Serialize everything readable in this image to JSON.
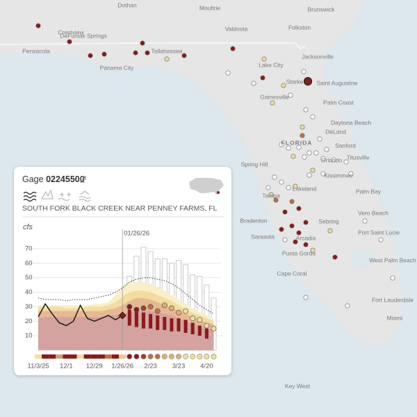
{
  "map": {
    "labels": [
      "Dothan",
      "Moultrie",
      "Valdosta",
      "Folkston",
      "Brunswick",
      "Crestview",
      "DeFuniak Springs",
      "Pensacola",
      "Tallahassee",
      "Jacksonville",
      "Panama City",
      "Lake City",
      "Starke",
      "Saint Augustine",
      "Gainesville",
      "Palm Coast",
      "Daytona Beach",
      "DeLand",
      "FLORIDA",
      "Sanford",
      "Spring Hill",
      "Orlando",
      "Titusville",
      "Kissimmee",
      "Lakeland",
      "Tampa",
      "Palm Bay",
      "Bradenton",
      "Sebring",
      "Vero Beach",
      "Port Saint Lucie",
      "Sarasota",
      "Arcadia",
      "West Palm Beach",
      "Punta Gorda",
      "Cape Coral",
      "Fort Lauderdale",
      "Miami",
      "Key West"
    ]
  },
  "card": {
    "title": "Gage",
    "gage_id": "02245500",
    "site_name": "SOUTH FORK BLACK CREEK NEAR PENNEY FARMS, FL"
  },
  "chart_data": {
    "type": "line",
    "y_label": "cfs",
    "annotation": "01/26/26",
    "categories": [
      "11/3/25",
      null,
      null,
      null,
      "12/1",
      null,
      null,
      null,
      "12/29",
      null,
      null,
      null,
      "1/26/26",
      null,
      null,
      null,
      "2/23",
      null,
      null,
      null,
      "3/23",
      null,
      null,
      null,
      "4/20",
      null
    ],
    "ylim": [
      0,
      80
    ],
    "yticks": [
      10,
      20,
      30,
      40,
      50,
      60,
      70
    ],
    "observed": {
      "color": "#1a1a1a",
      "values": [
        23,
        32,
        25,
        19,
        17,
        20,
        31,
        22,
        20,
        22,
        24,
        21,
        24,
        null,
        null,
        null,
        null,
        null,
        null,
        null,
        null,
        null,
        null,
        null,
        null,
        null
      ]
    },
    "reference": {
      "color": "#333333",
      "values": [
        36,
        35,
        35,
        35,
        34,
        35,
        35,
        35,
        36,
        37,
        38,
        40,
        43,
        47,
        49,
        50,
        50,
        49,
        48,
        46,
        43,
        39,
        35,
        31,
        28,
        25
      ]
    },
    "bands": [
      {
        "color": "#f8efc8",
        "values": [
          31,
          31,
          31,
          31,
          31,
          31,
          31,
          31,
          32,
          32,
          33,
          38,
          44,
          47,
          47,
          47,
          46,
          44,
          41,
          38,
          35,
          32,
          29,
          26,
          24,
          22
        ]
      },
      {
        "color": "#f2dc9e",
        "values": [
          30,
          30,
          30,
          30,
          29,
          29,
          29,
          30,
          30,
          30,
          31,
          33,
          37,
          40,
          41,
          41,
          40,
          38,
          36,
          34,
          31,
          28,
          26,
          24,
          22,
          20
        ]
      },
      {
        "color": "#e6b896",
        "values": [
          27,
          27,
          27,
          27,
          27,
          27,
          27,
          27,
          27,
          27,
          28,
          29,
          31,
          34,
          36,
          36,
          35,
          33,
          31,
          29,
          27,
          25,
          23,
          21,
          19,
          18
        ]
      },
      {
        "color": "#d4a3a0",
        "values": [
          22,
          23,
          23,
          23,
          23,
          23,
          23,
          23,
          23,
          23,
          24,
          24,
          25,
          26,
          27,
          27,
          27,
          26,
          25,
          24,
          22,
          20,
          18,
          17,
          15,
          14
        ]
      }
    ],
    "forecast": {
      "max": [
        null,
        null,
        null,
        null,
        null,
        null,
        null,
        null,
        null,
        null,
        null,
        null,
        null,
        51,
        65,
        71,
        68,
        63,
        63,
        60,
        62,
        59,
        52,
        51,
        45,
        36
      ],
      "upper": [
        null,
        null,
        null,
        null,
        null,
        null,
        null,
        null,
        null,
        null,
        null,
        null,
        null,
        28,
        27,
        26,
        25,
        24,
        23,
        22,
        22,
        21,
        19,
        17,
        15,
        null
      ],
      "lower": [
        null,
        null,
        null,
        null,
        null,
        null,
        null,
        null,
        null,
        null,
        null,
        null,
        null,
        17,
        16,
        15,
        15,
        14,
        14,
        13,
        13,
        12,
        11,
        10,
        8,
        null
      ],
      "bar_color": "#8b1a1a",
      "median": [
        null,
        null,
        null,
        null,
        null,
        null,
        null,
        null,
        null,
        null,
        null,
        null,
        null,
        30,
        28,
        29,
        30,
        27,
        31,
        29,
        26,
        27,
        22,
        21,
        17,
        15
      ],
      "median_colors": [
        null,
        null,
        null,
        null,
        null,
        null,
        null,
        null,
        null,
        null,
        null,
        null,
        null,
        "#8b1a1a",
        "#8b1a1a",
        "#a0401a",
        "#c07040",
        "#c07040",
        "#e0b070",
        "#e0b070",
        "#e0b070",
        "#f0e0a0",
        "#f0e0a0",
        "#f0e0a0",
        "#f0e0a0",
        "#f0e0a0"
      ]
    },
    "status_colors": [
      "#f0e0a0",
      "#8b1a1a",
      "#8b1a1a",
      "#c8a070",
      "#8b1a1a",
      "#8b1a1a",
      "#f0e0a0",
      "#8b1a1a",
      "#8b1a1a",
      "#8b1a1a",
      "#c07040",
      "#8b1a1a",
      "#e8c890",
      "#8b1a1a",
      "#8b1a1a",
      "#a0401a",
      "#c07040",
      "#c07040",
      "#e0b070",
      "#e0b070",
      "#e0b070",
      "#f0e0a0",
      "#f0e0a0",
      "#f0e0a0",
      "#f0e0a0",
      "#f0e0a0"
    ]
  }
}
